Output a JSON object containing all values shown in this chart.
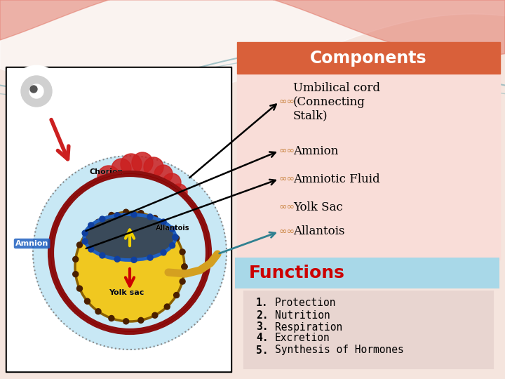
{
  "bg_top_color": "#f0c8b8",
  "bg_bottom_color": "#f5e8e0",
  "components_box_color": "#d9603a",
  "components_text": "Components",
  "components_text_color": "#ffffff",
  "components_panel_color": "#f9ddd8",
  "bullet_color": "#c8823c",
  "items": [
    "Umbilical cord\n(Connecting\nStalk)",
    "Amnion",
    "Amniotic Fluid",
    "Yolk Sac",
    "Allantois"
  ],
  "items_color": "#000000",
  "functions_title": "Functions",
  "functions_title_color": "#cc0000",
  "functions_box_bg": "#c8e8f0",
  "functions_list_bg": "#e8d8d5",
  "function_list": [
    "Protection",
    "Nutrition",
    "Respiration",
    "Excretion",
    "Synthesis of Hormones"
  ],
  "function_list_color": "#000000"
}
